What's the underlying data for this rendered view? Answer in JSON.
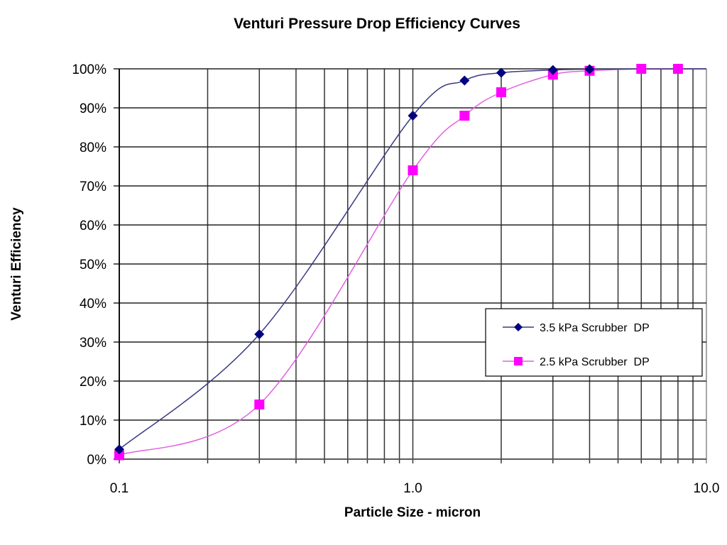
{
  "chart_data": {
    "type": "line",
    "title": "Venturi Pressure Drop Efficiency Curves",
    "xlabel": "Particle Size - micron",
    "ylabel": "Venturi Efficiency",
    "xscale": "log",
    "xlim": [
      0.1,
      10
    ],
    "ylim": [
      0,
      100
    ],
    "x_tick_labels": [
      "0.1",
      "1.0",
      "10.0"
    ],
    "x_ticks": [
      0.1,
      1,
      10
    ],
    "y_ticks": [
      0,
      10,
      20,
      30,
      40,
      50,
      60,
      70,
      80,
      90,
      100
    ],
    "y_tick_labels": [
      "0%",
      "10%",
      "20%",
      "30%",
      "40%",
      "50%",
      "60%",
      "70%",
      "80%",
      "90%",
      "100%"
    ],
    "grid": true,
    "legend_position": "lower-right",
    "series": [
      {
        "name": "3.5 kPa Scrubber  DP",
        "color": "#000080",
        "line_color": "#3a3a80",
        "marker": "diamond",
        "x": [
          0.1,
          0.3,
          1.0,
          1.5,
          2,
          3,
          4
        ],
        "y": [
          2.5,
          32,
          88,
          97,
          99,
          99.7,
          99.9
        ],
        "line_extends_to": [
          10,
          100
        ]
      },
      {
        "name": "2.5 kPa Scrubber  DP",
        "color": "#ff00ff",
        "line_color": "#e060e0",
        "marker": "square",
        "x": [
          0.1,
          0.3,
          1.0,
          1.5,
          2,
          3,
          4,
          6,
          8
        ],
        "y": [
          1,
          14,
          74,
          88,
          94,
          98.5,
          99.5,
          100,
          100
        ],
        "line_extends_to": [
          10,
          100
        ]
      }
    ]
  }
}
